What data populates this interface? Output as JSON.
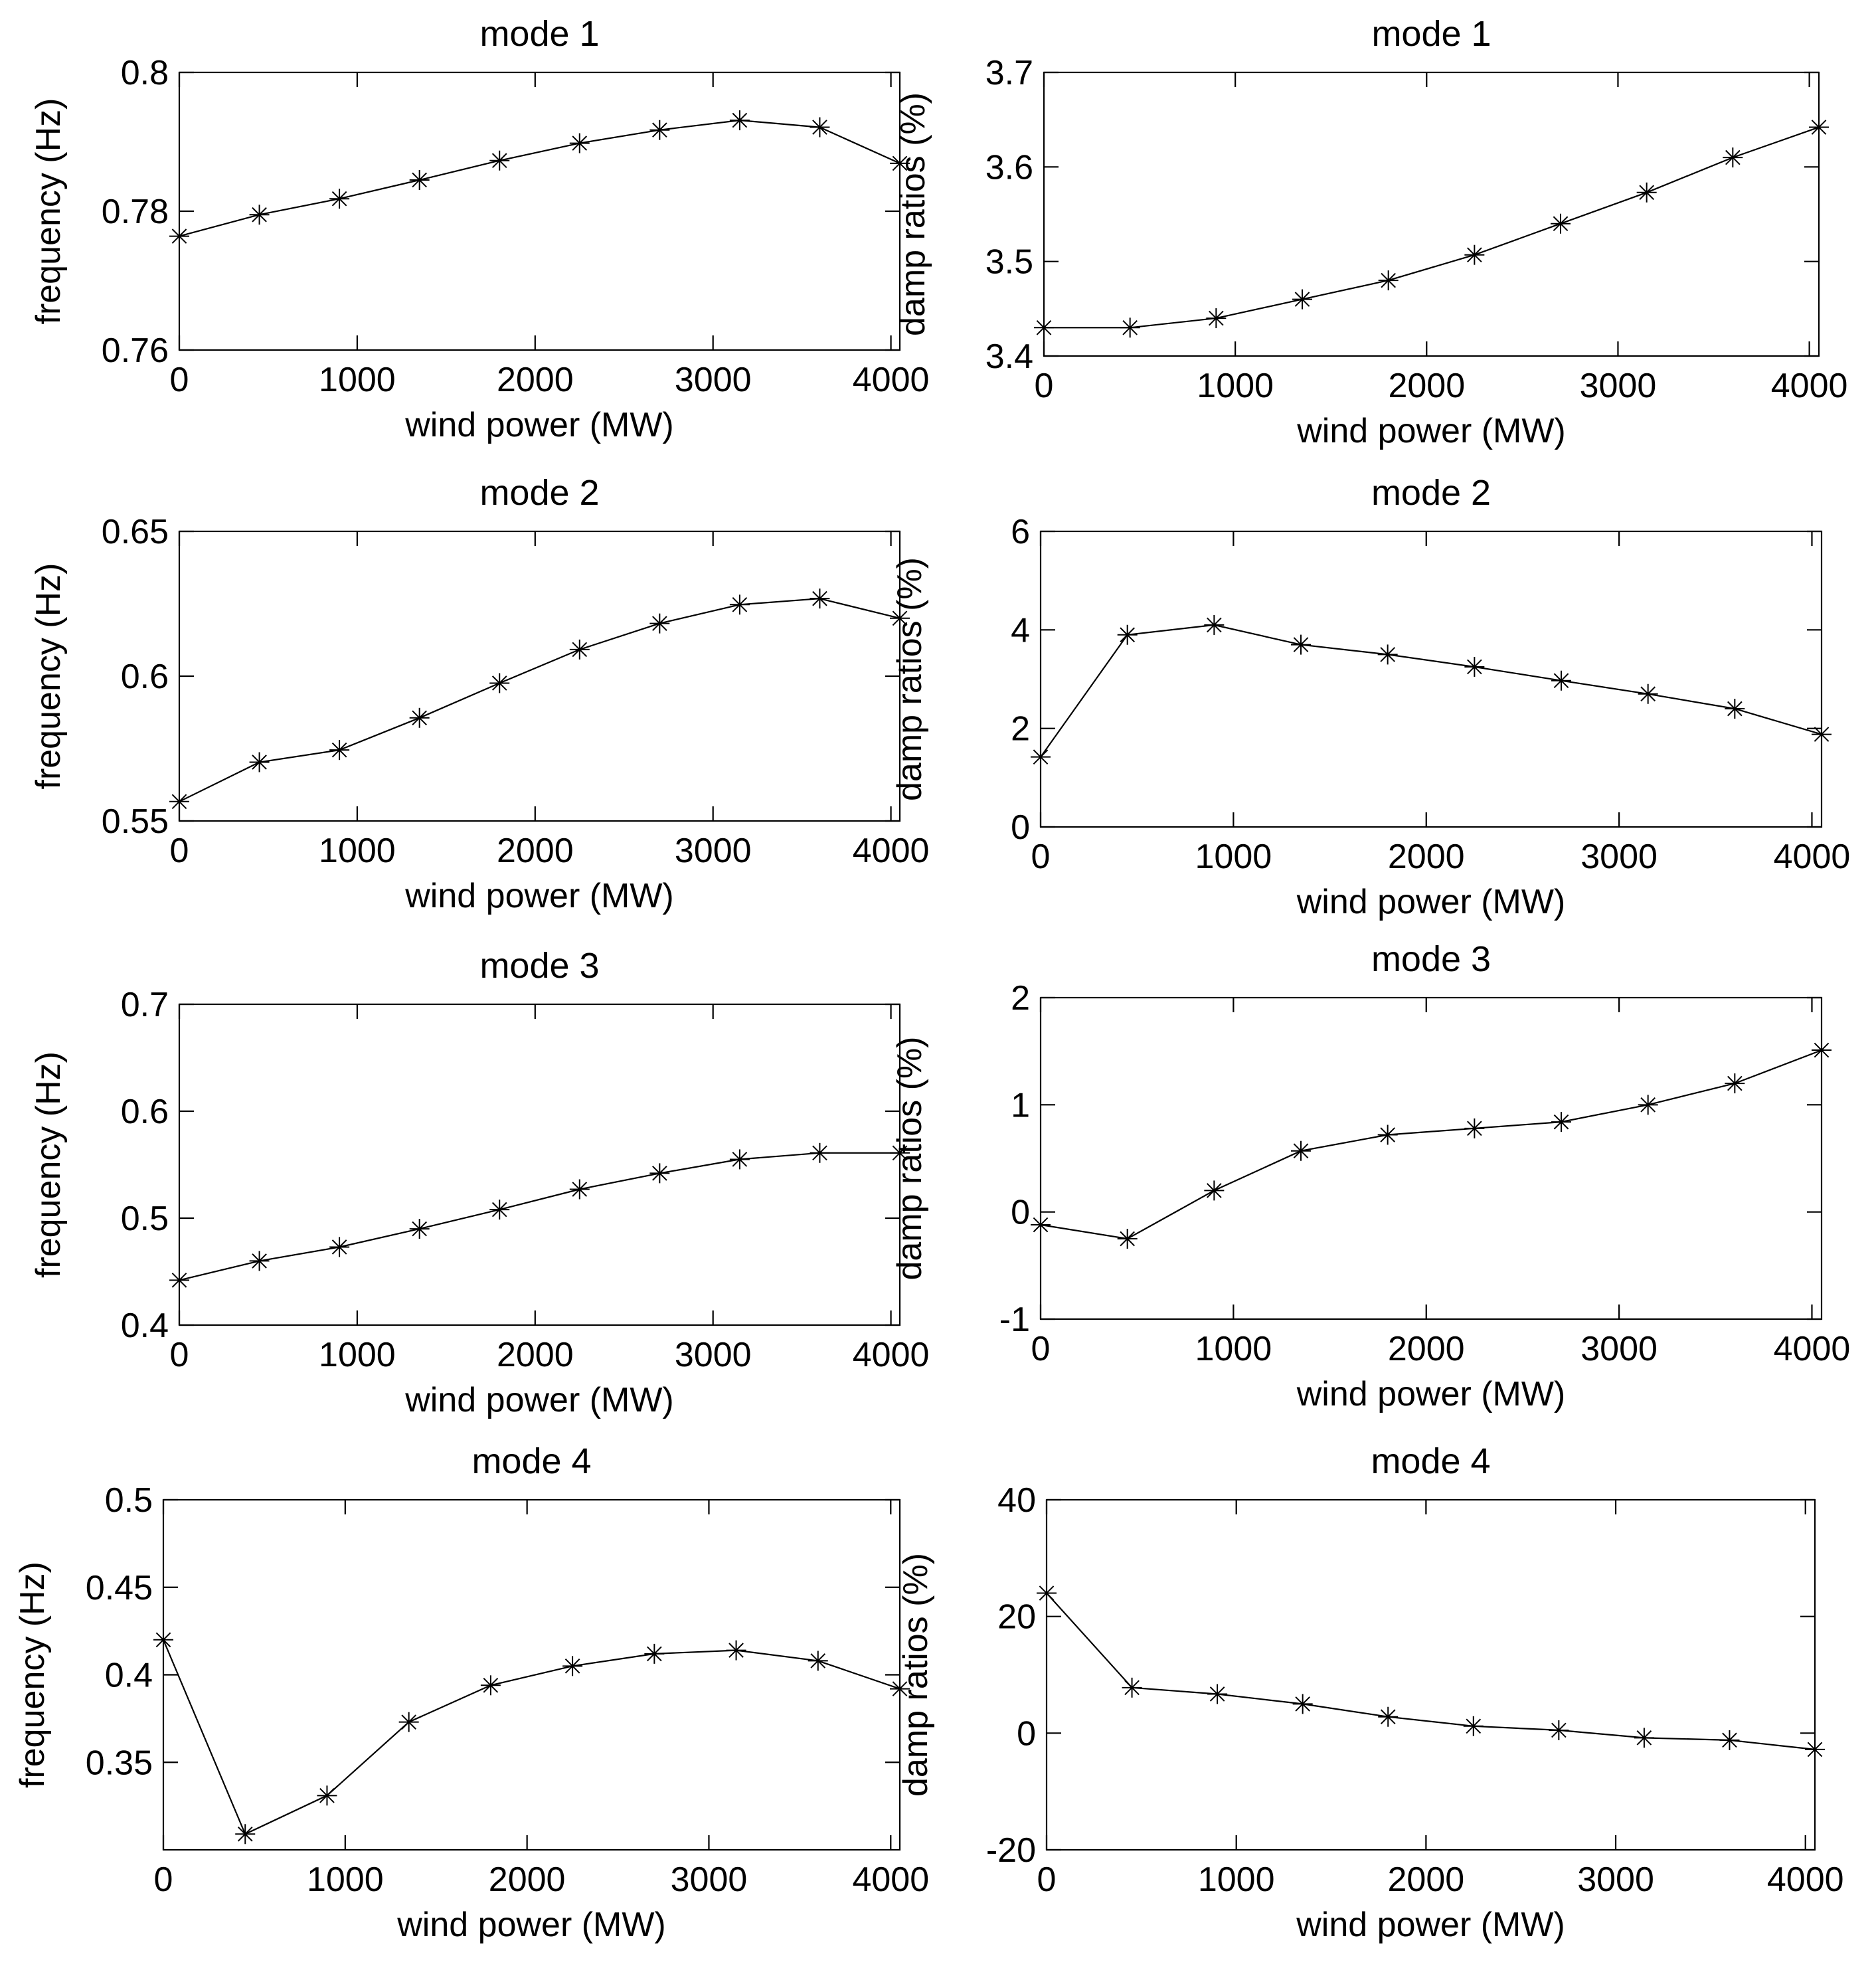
{
  "chart_data": [
    {
      "type": "line",
      "title": "mode 1",
      "xlabel": "wind power (MW)",
      "ylabel": "frequency (Hz)",
      "xlim": [
        0,
        4050
      ],
      "ylim": [
        0.76,
        0.8
      ],
      "xticks": [
        0,
        1000,
        2000,
        3000,
        4000
      ],
      "xtick_labels": [
        "0",
        "1000",
        "2000",
        "3000",
        "4000"
      ],
      "yticks": [
        0.76,
        0.78,
        0.8
      ],
      "ytick_labels": [
        "0.76",
        "0.78",
        "0.8"
      ],
      "grid": false,
      "marker": "*",
      "x": [
        0,
        450,
        900,
        1350,
        1800,
        2250,
        2700,
        3150,
        3600,
        4050
      ],
      "y": [
        0.7764,
        0.7795,
        0.7818,
        0.7845,
        0.7873,
        0.7898,
        0.7917,
        0.7931,
        0.7921,
        0.7869
      ]
    },
    {
      "type": "line",
      "title": "mode 1",
      "xlabel": "wind power (MW)",
      "ylabel": "damp ratios (%)",
      "xlim": [
        0,
        4050
      ],
      "ylim": [
        3.4,
        3.7
      ],
      "xticks": [
        0,
        1000,
        2000,
        3000,
        4000
      ],
      "xtick_labels": [
        "0",
        "1000",
        "2000",
        "3000",
        "4000"
      ],
      "yticks": [
        3.4,
        3.5,
        3.6,
        3.7
      ],
      "ytick_labels": [
        "3.4",
        "3.5",
        "3.6",
        "3.7"
      ],
      "grid": false,
      "marker": "*",
      "x": [
        0,
        450,
        900,
        1350,
        1800,
        2250,
        2700,
        3150,
        3600,
        4050
      ],
      "y": [
        3.43,
        3.43,
        3.44,
        3.46,
        3.48,
        3.507,
        3.54,
        3.573,
        3.61,
        3.642
      ]
    },
    {
      "type": "line",
      "title": "mode 2",
      "xlabel": "wind power (MW)",
      "ylabel": "frequency (Hz)",
      "xlim": [
        0,
        4050
      ],
      "ylim": [
        0.55,
        0.65
      ],
      "xticks": [
        0,
        1000,
        2000,
        3000,
        4000
      ],
      "xtick_labels": [
        "0",
        "1000",
        "2000",
        "3000",
        "4000"
      ],
      "yticks": [
        0.55,
        0.6,
        0.65
      ],
      "ytick_labels": [
        "0.55",
        "0.6",
        "0.65"
      ],
      "grid": false,
      "marker": "*",
      "x": [
        0,
        450,
        900,
        1350,
        1800,
        2250,
        2700,
        3150,
        3600,
        4050
      ],
      "y": [
        0.5567,
        0.5703,
        0.5745,
        0.5856,
        0.5976,
        0.6092,
        0.6182,
        0.6247,
        0.6268,
        0.62
      ]
    },
    {
      "type": "line",
      "title": "mode 2",
      "xlabel": "wind power (MW)",
      "ylabel": "damp ratios (%)",
      "xlim": [
        0,
        4050
      ],
      "ylim": [
        0,
        6
      ],
      "xticks": [
        0,
        1000,
        2000,
        3000,
        4000
      ],
      "xtick_labels": [
        "0",
        "1000",
        "2000",
        "3000",
        "4000"
      ],
      "yticks": [
        0,
        2,
        4,
        6
      ],
      "ytick_labels": [
        "0",
        "2",
        "4",
        "6"
      ],
      "grid": false,
      "marker": "*",
      "x": [
        0,
        450,
        900,
        1350,
        1800,
        2250,
        2700,
        3150,
        3600,
        4050
      ],
      "y": [
        1.42,
        3.9,
        4.1,
        3.7,
        3.5,
        3.25,
        2.97,
        2.7,
        2.4,
        1.88
      ]
    },
    {
      "type": "line",
      "title": "mode 3",
      "xlabel": "wind power (MW)",
      "ylabel": "frequency (Hz)",
      "xlim": [
        0,
        4050
      ],
      "ylim": [
        0.4,
        0.7
      ],
      "xticks": [
        0,
        1000,
        2000,
        3000,
        4000
      ],
      "xtick_labels": [
        "0",
        "1000",
        "2000",
        "3000",
        "4000"
      ],
      "yticks": [
        0.4,
        0.5,
        0.6,
        0.7
      ],
      "ytick_labels": [
        "0.4",
        "0.5",
        "0.6",
        "0.7"
      ],
      "grid": false,
      "marker": "*",
      "x": [
        0,
        450,
        900,
        1350,
        1800,
        2250,
        2700,
        3150,
        3600,
        4050
      ],
      "y": [
        0.442,
        0.46,
        0.473,
        0.49,
        0.508,
        0.527,
        0.542,
        0.555,
        0.561,
        0.561
      ]
    },
    {
      "type": "line",
      "title": "mode 3",
      "xlabel": "wind power (MW)",
      "ylabel": "damp ratios (%)",
      "xlim": [
        0,
        4050
      ],
      "ylim": [
        -1,
        2
      ],
      "xticks": [
        0,
        1000,
        2000,
        3000,
        4000
      ],
      "xtick_labels": [
        "0",
        "1000",
        "2000",
        "3000",
        "4000"
      ],
      "yticks": [
        -1,
        0,
        1,
        2
      ],
      "ytick_labels": [
        "-1",
        "0",
        "1",
        "2"
      ],
      "grid": false,
      "marker": "*",
      "x": [
        0,
        450,
        900,
        1350,
        1800,
        2250,
        2700,
        3150,
        3600,
        4050
      ],
      "y": [
        -0.12,
        -0.25,
        0.2,
        0.57,
        0.72,
        0.78,
        0.84,
        1.0,
        1.2,
        1.51
      ]
    },
    {
      "type": "line",
      "title": "mode 4",
      "xlabel": "wind power (MW)",
      "ylabel": "frequency (Hz)",
      "xlim": [
        0,
        4050
      ],
      "ylim": [
        0.3,
        0.5
      ],
      "xticks": [
        0,
        1000,
        2000,
        3000,
        4000
      ],
      "xtick_labels": [
        "0",
        "1000",
        "2000",
        "3000",
        "4000"
      ],
      "yticks": [
        0.35,
        0.4,
        0.45,
        0.5
      ],
      "ytick_labels": [
        "0.35",
        "0.4",
        "0.45",
        "0.5"
      ],
      "grid": false,
      "marker": "*",
      "x": [
        0,
        450,
        900,
        1350,
        1800,
        2250,
        2700,
        3150,
        3600,
        4050
      ],
      "y": [
        0.42,
        0.309,
        0.331,
        0.373,
        0.394,
        0.405,
        0.412,
        0.414,
        0.408,
        0.392
      ]
    },
    {
      "type": "line",
      "title": "mode 4",
      "xlabel": "wind power (MW)",
      "ylabel": "damp ratios (%)",
      "xlim": [
        0,
        4050
      ],
      "ylim": [
        -20,
        40
      ],
      "xticks": [
        0,
        1000,
        2000,
        3000,
        4000
      ],
      "xtick_labels": [
        "0",
        "1000",
        "2000",
        "3000",
        "4000"
      ],
      "yticks": [
        -20,
        0,
        20,
        40
      ],
      "ytick_labels": [
        "-20",
        "0",
        "20",
        "40"
      ],
      "grid": false,
      "marker": "*",
      "x": [
        0,
        450,
        900,
        1350,
        1800,
        2250,
        2700,
        3150,
        3600,
        4050
      ],
      "y": [
        24,
        7.8,
        6.7,
        5,
        2.8,
        1.2,
        0.5,
        -0.8,
        -1.2,
        -2.8
      ]
    }
  ]
}
